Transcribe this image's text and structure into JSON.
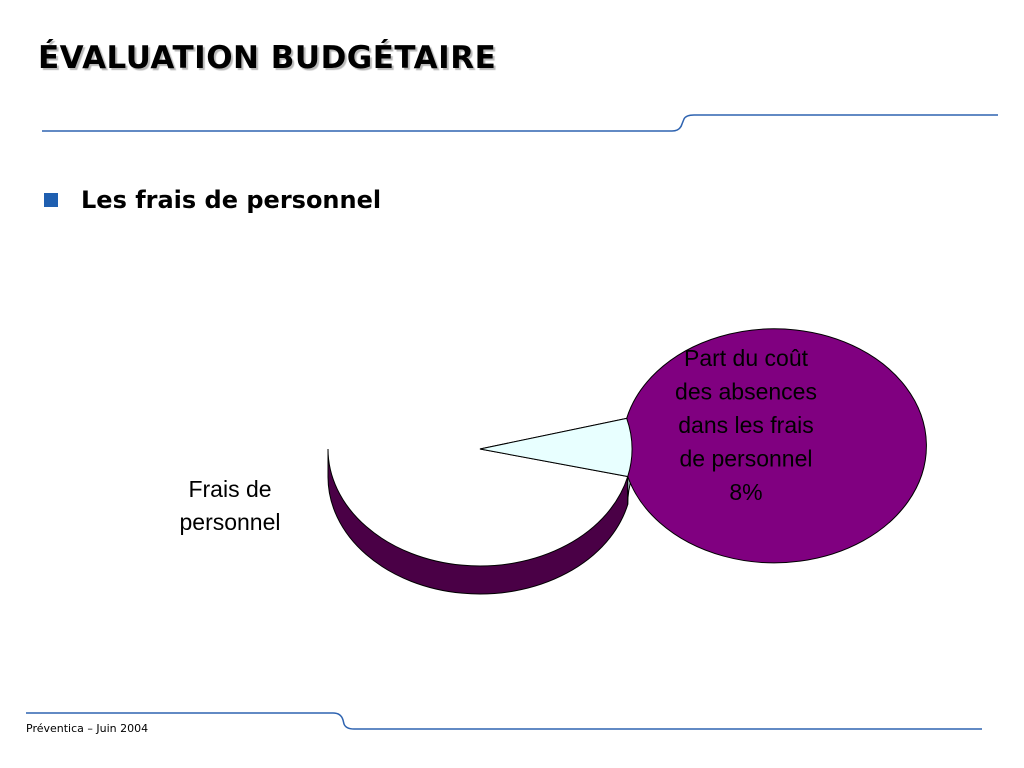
{
  "slide": {
    "title": "ÉVALUATION BUDGÉTAIRE",
    "bullet": "Les frais de personnel",
    "footer": "Préventica – Juin 2004"
  },
  "colors": {
    "accent_line": "#2e63b0",
    "bullet": "#1f5fb0",
    "slice_main": "#800080",
    "slice_main_side": "#4a0046",
    "slice_minor": "#e8ffff",
    "slice_minor_side": "#b9d6d6",
    "outline": "#000000"
  },
  "chart_data": {
    "type": "pie",
    "style": "3d",
    "slices": [
      {
        "label_lines": [
          "Frais de",
          "personnel"
        ],
        "value": 92,
        "value_label": ""
      },
      {
        "label_lines": [
          "Part du coût",
          "des absences",
          "dans les frais",
          "de personnel"
        ],
        "value": 8,
        "value_label": "8%"
      }
    ]
  }
}
